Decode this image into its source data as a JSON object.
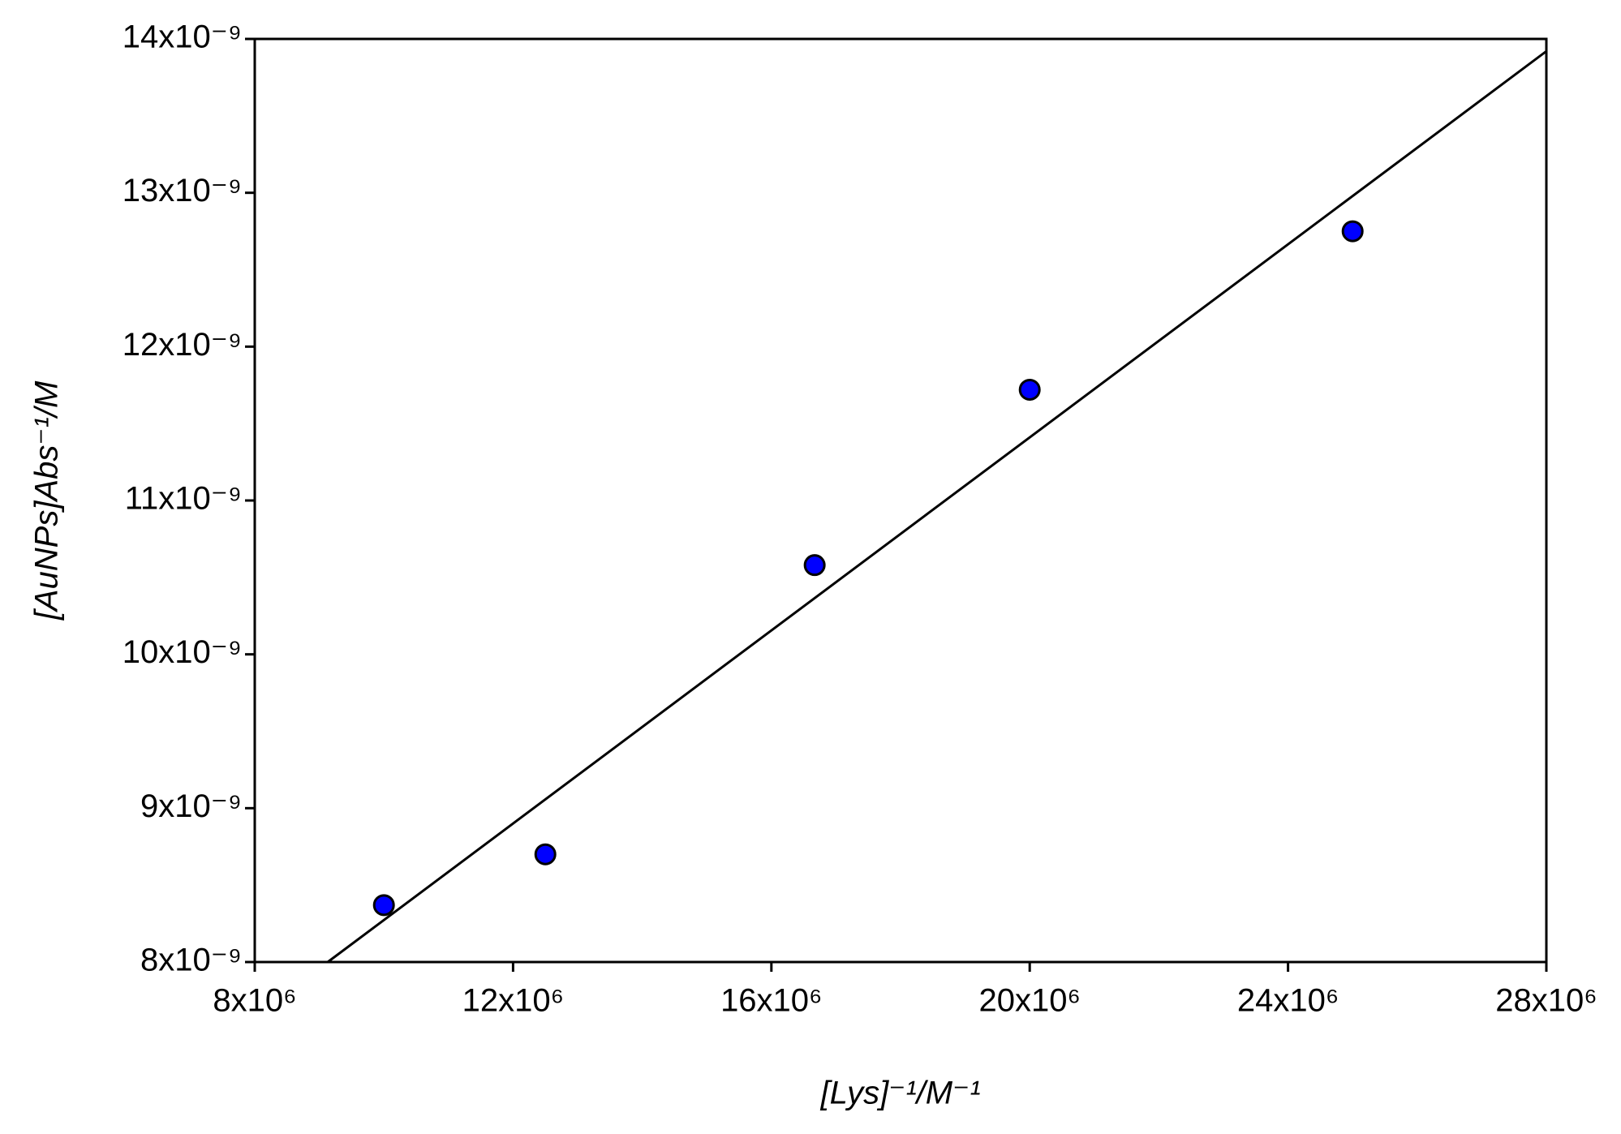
{
  "chart_data": {
    "type": "scatter",
    "x_label": "[Lys]⁻¹/M⁻¹",
    "y_label": "[AuNPs]Abs⁻¹/M",
    "xlim": [
      8000000,
      28000000
    ],
    "ylim": [
      8e-09,
      1.4e-08
    ],
    "xticks": [
      {
        "value": 8000000,
        "label": "8x10⁶"
      },
      {
        "value": 12000000,
        "label": "12x10⁶"
      },
      {
        "value": 16000000,
        "label": "16x10⁶"
      },
      {
        "value": 20000000,
        "label": "20x10⁶"
      },
      {
        "value": 24000000,
        "label": "24x10⁶"
      },
      {
        "value": 28000000,
        "label": "28x10⁶"
      }
    ],
    "yticks": [
      {
        "value": 8e-09,
        "label": "8x10⁻⁹"
      },
      {
        "value": 9e-09,
        "label": "9x10⁻⁹"
      },
      {
        "value": 1e-08,
        "label": "10x10⁻⁹"
      },
      {
        "value": 1.1e-08,
        "label": "11x10⁻⁹"
      },
      {
        "value": 1.2e-08,
        "label": "12x10⁻⁹"
      },
      {
        "value": 1.3e-08,
        "label": "13x10⁻⁹"
      },
      {
        "value": 1.4e-08,
        "label": "14x10⁻⁹"
      }
    ],
    "series": [
      {
        "type": "scatter",
        "color": "#0000ff",
        "x": [
          10000000,
          12500000,
          16670000,
          20000000,
          25000000
        ],
        "values": [
          8.37e-09,
          8.7e-09,
          1.058e-08,
          1.172e-08,
          1.275e-08
        ]
      },
      {
        "type": "line",
        "color": "#000000",
        "x": [
          9130000,
          28000000
        ],
        "values": [
          8e-09,
          1.392e-08
        ]
      }
    ]
  }
}
